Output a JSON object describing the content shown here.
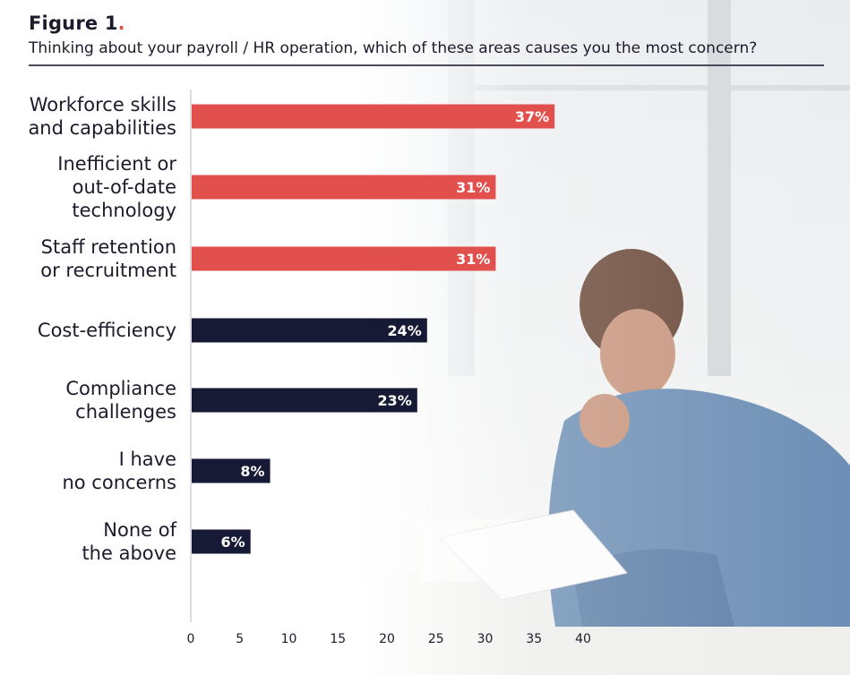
{
  "figure": {
    "label": "Figure 1",
    "dot": "."
  },
  "chart_data": {
    "type": "bar",
    "orientation": "horizontal",
    "title": "Thinking about your payroll / HR operation, which of these areas causes you the most concern?",
    "categories": [
      [
        "Workforce skills",
        "and capabilities"
      ],
      [
        "Inefficient or",
        "out-of-date",
        "technology"
      ],
      [
        "Staff retention",
        "or recruitment"
      ],
      [
        "Cost-efficiency"
      ],
      [
        "Compliance",
        "challenges"
      ],
      [
        "I have",
        "no concerns"
      ],
      [
        "None of",
        "the above"
      ]
    ],
    "values": [
      37,
      31,
      31,
      24,
      23,
      8,
      6
    ],
    "value_labels": [
      "37%",
      "31%",
      "31%",
      "24%",
      "23%",
      "8%",
      "6%"
    ],
    "bar_colors": [
      "#e2504d",
      "#e2504d",
      "#e2504d",
      "#161a34",
      "#161a34",
      "#161a34",
      "#161a34"
    ],
    "xlim": [
      0,
      40
    ],
    "xticks": [
      "0",
      "5",
      "10",
      "15",
      "20",
      "25",
      "30",
      "35",
      "40"
    ],
    "grid": false
  },
  "colors": {
    "accent": "#e2504d",
    "dark": "#161a34",
    "text": "#1b1b2b"
  }
}
